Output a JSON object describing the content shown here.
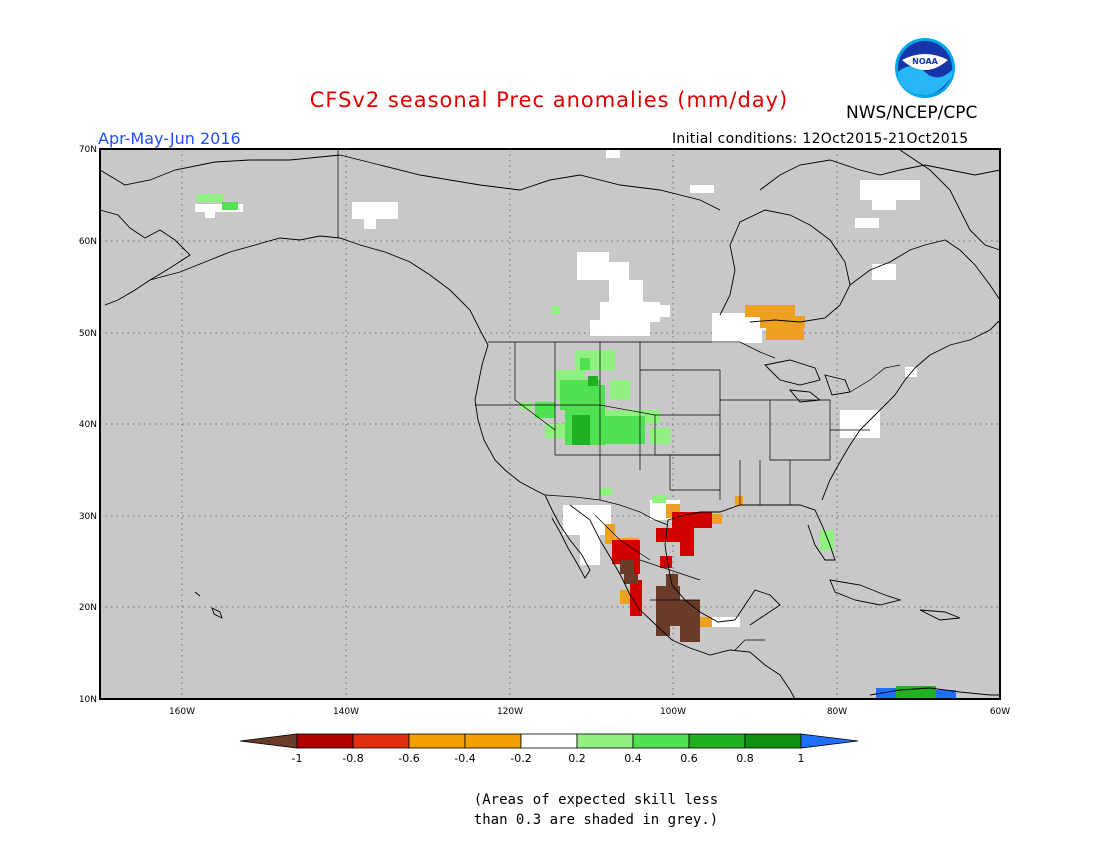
{
  "title": "CFSv2 seasonal Prec anomalies (mm/day)",
  "organization": "NWS/NCEP/CPC",
  "logo_text": "NOAA",
  "season": "Apr-May-Jun 2016",
  "initial_conditions": "Initial conditions: 12Oct2015-21Oct2015",
  "lat_ticks": [
    "70N",
    "60N",
    "50N",
    "40N",
    "30N",
    "20N",
    "10N"
  ],
  "lon_ticks": [
    "160W",
    "140W",
    "120W",
    "100W",
    "80W",
    "60W"
  ],
  "colorbar": {
    "labels": [
      "-1",
      "-0.8",
      "-0.6",
      "-0.4",
      "-0.2",
      "0.2",
      "0.4",
      "0.6",
      "0.8",
      "1"
    ],
    "colors": [
      "#6b3b2a",
      "#b00000",
      "#e03010",
      "#f08000",
      "#ffffff",
      "#90f080",
      "#50e050",
      "#20b020",
      "#109010",
      "#2070ff"
    ],
    "low_arrow_color": "#6b3b2a",
    "high_arrow_color": "#2070ff"
  },
  "note_line1": "(Areas of expected skill less",
  "note_line2": "than 0.3 are shaded in grey.)",
  "colors": {
    "title": "#e00000",
    "season": "#1f4fff",
    "map_background": "#c8c8c8",
    "wet_light": "#90f080",
    "wet_medium": "#50e050",
    "wet_strong": "#20b020",
    "dry_light": "#f0a020",
    "dry_medium": "#d00000",
    "dry_strong": "#6b3b2a"
  }
}
